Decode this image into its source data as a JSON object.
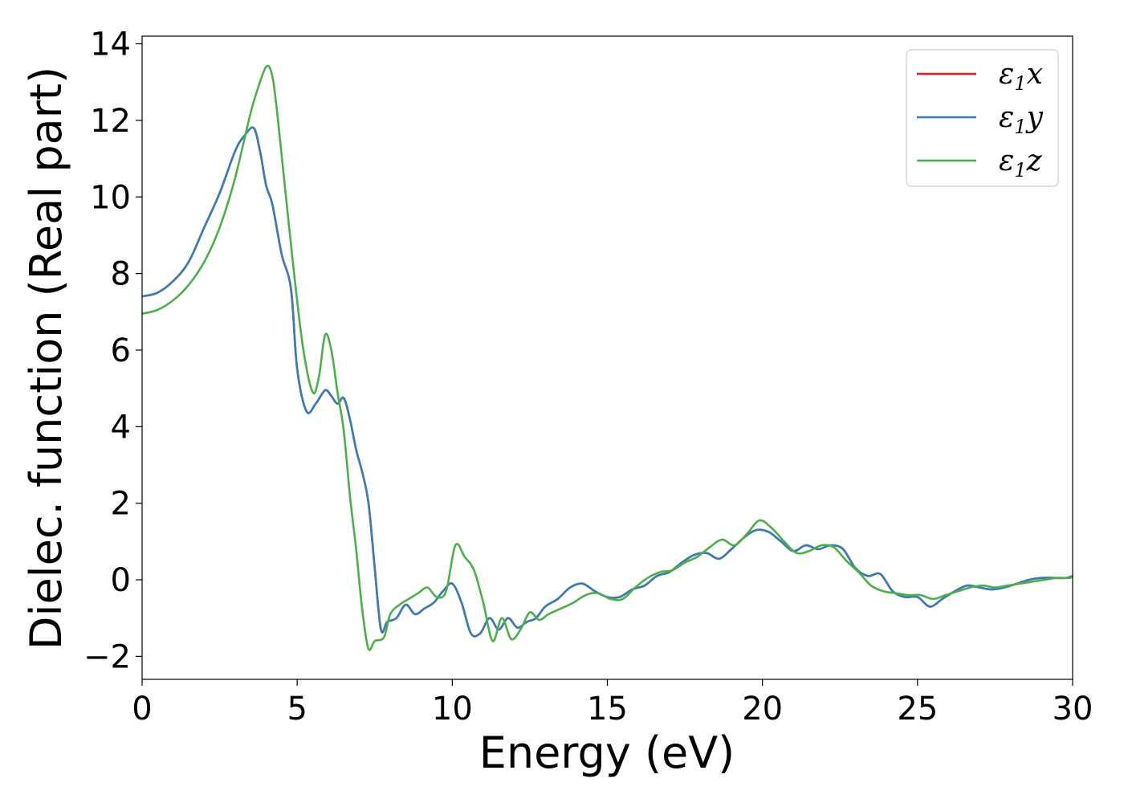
{
  "chart_data": {
    "type": "line",
    "xlabel": "Energy (eV)",
    "ylabel": "Dielec. function (Real part)",
    "xlim": [
      0,
      30
    ],
    "ylim": [
      -2.6,
      14.2
    ],
    "xticks": [
      0,
      5,
      10,
      15,
      20,
      25,
      30
    ],
    "xtick_labels": [
      "0",
      "5",
      "10",
      "15",
      "20",
      "25",
      "30"
    ],
    "yticks": [
      -2,
      0,
      2,
      4,
      6,
      8,
      10,
      12,
      14
    ],
    "ytick_labels": [
      "−2",
      "0",
      "2",
      "4",
      "6",
      "8",
      "10",
      "12",
      "14"
    ],
    "grid": false,
    "legend_position": "top-right",
    "series": [
      {
        "name": "ε1x",
        "symbol": "ε",
        "subscript": "1",
        "suffix": "x",
        "color": "#e41a1c",
        "x": [
          0,
          0.5,
          1,
          1.5,
          2,
          2.5,
          3,
          3.3,
          3.6,
          3.8,
          4,
          4.2,
          4.5,
          4.8,
          5,
          5.3,
          5.6,
          5.9,
          6.1,
          6.3,
          6.5,
          6.7,
          6.9,
          7.1,
          7.3,
          7.5,
          7.7,
          7.9,
          8.2,
          8.5,
          8.8,
          9.1,
          9.4,
          9.7,
          10,
          10.3,
          10.6,
          10.9,
          11.2,
          11.5,
          11.8,
          12.1,
          12.4,
          12.7,
          13,
          13.4,
          13.8,
          14.2,
          14.6,
          15,
          15.4,
          15.8,
          16.2,
          16.6,
          17,
          17.4,
          17.8,
          18.2,
          18.6,
          19,
          19.4,
          19.8,
          20.2,
          20.6,
          21,
          21.4,
          21.8,
          22.2,
          22.6,
          23,
          23.4,
          23.8,
          24.2,
          24.6,
          25,
          25.4,
          25.8,
          26.2,
          26.6,
          27,
          27.4,
          27.8,
          28.2,
          28.6,
          29,
          29.4,
          29.8,
          30
        ],
        "y": [
          7.4,
          7.5,
          7.8,
          8.3,
          9.2,
          10.1,
          11.2,
          11.6,
          11.8,
          11.2,
          10.3,
          9.8,
          8.5,
          7.6,
          5.5,
          4.4,
          4.6,
          4.95,
          4.8,
          4.6,
          4.75,
          4.2,
          3.4,
          2.8,
          2.0,
          0.3,
          -1.3,
          -1.1,
          -1.0,
          -0.65,
          -0.9,
          -0.75,
          -0.6,
          -0.3,
          -0.1,
          -0.6,
          -1.4,
          -1.4,
          -1.0,
          -1.3,
          -1.0,
          -1.25,
          -1.1,
          -1.0,
          -0.7,
          -0.5,
          -0.2,
          -0.1,
          -0.3,
          -0.45,
          -0.45,
          -0.25,
          -0.15,
          0.1,
          0.2,
          0.45,
          0.65,
          0.7,
          0.55,
          0.8,
          1.1,
          1.3,
          1.25,
          1.0,
          0.75,
          0.9,
          0.8,
          0.9,
          0.8,
          0.3,
          0.1,
          0.15,
          -0.3,
          -0.45,
          -0.45,
          -0.7,
          -0.5,
          -0.3,
          -0.15,
          -0.2,
          -0.25,
          -0.2,
          -0.1,
          0.0,
          0.05,
          0.05,
          0.05,
          0.1
        ]
      },
      {
        "name": "ε1y",
        "symbol": "ε",
        "subscript": "1",
        "suffix": "y",
        "color": "#377eb8",
        "x": [
          0,
          0.5,
          1,
          1.5,
          2,
          2.5,
          3,
          3.3,
          3.6,
          3.8,
          4,
          4.2,
          4.5,
          4.8,
          5,
          5.3,
          5.6,
          5.9,
          6.1,
          6.3,
          6.5,
          6.7,
          6.9,
          7.1,
          7.3,
          7.5,
          7.7,
          7.9,
          8.2,
          8.5,
          8.8,
          9.1,
          9.4,
          9.7,
          10,
          10.3,
          10.6,
          10.9,
          11.2,
          11.5,
          11.8,
          12.1,
          12.4,
          12.7,
          13,
          13.4,
          13.8,
          14.2,
          14.6,
          15,
          15.4,
          15.8,
          16.2,
          16.6,
          17,
          17.4,
          17.8,
          18.2,
          18.6,
          19,
          19.4,
          19.8,
          20.2,
          20.6,
          21,
          21.4,
          21.8,
          22.2,
          22.6,
          23,
          23.4,
          23.8,
          24.2,
          24.6,
          25,
          25.4,
          25.8,
          26.2,
          26.6,
          27,
          27.4,
          27.8,
          28.2,
          28.6,
          29,
          29.4,
          29.8,
          30
        ],
        "y": [
          7.4,
          7.5,
          7.8,
          8.3,
          9.2,
          10.1,
          11.2,
          11.6,
          11.8,
          11.2,
          10.3,
          9.8,
          8.5,
          7.6,
          5.5,
          4.4,
          4.6,
          4.95,
          4.8,
          4.6,
          4.75,
          4.2,
          3.4,
          2.8,
          2.0,
          0.3,
          -1.3,
          -1.1,
          -1.0,
          -0.65,
          -0.9,
          -0.75,
          -0.6,
          -0.3,
          -0.1,
          -0.6,
          -1.4,
          -1.4,
          -1.0,
          -1.3,
          -1.0,
          -1.25,
          -1.1,
          -1.0,
          -0.7,
          -0.5,
          -0.2,
          -0.1,
          -0.3,
          -0.45,
          -0.45,
          -0.25,
          -0.15,
          0.1,
          0.2,
          0.45,
          0.65,
          0.7,
          0.55,
          0.8,
          1.1,
          1.3,
          1.25,
          1.0,
          0.75,
          0.9,
          0.8,
          0.9,
          0.8,
          0.3,
          0.1,
          0.15,
          -0.3,
          -0.45,
          -0.45,
          -0.7,
          -0.5,
          -0.3,
          -0.15,
          -0.2,
          -0.25,
          -0.2,
          -0.1,
          0.0,
          0.05,
          0.05,
          0.05,
          0.1
        ]
      },
      {
        "name": "ε1z",
        "symbol": "ε",
        "subscript": "1",
        "suffix": "z",
        "color": "#4daf4a",
        "x": [
          0,
          0.5,
          1,
          1.5,
          2,
          2.5,
          3,
          3.5,
          3.8,
          4.0,
          4.15,
          4.3,
          4.6,
          4.9,
          5.2,
          5.5,
          5.7,
          5.9,
          6.1,
          6.3,
          6.5,
          6.7,
          6.9,
          7.1,
          7.3,
          7.5,
          7.8,
          8.0,
          8.3,
          8.6,
          8.9,
          9.2,
          9.5,
          9.8,
          10.1,
          10.4,
          10.7,
          11.0,
          11.3,
          11.6,
          11.9,
          12.2,
          12.5,
          12.8,
          13.1,
          13.5,
          13.9,
          14.3,
          14.7,
          15.1,
          15.5,
          15.9,
          16.3,
          16.7,
          17.1,
          17.5,
          17.9,
          18.3,
          18.7,
          19.1,
          19.5,
          19.9,
          20.3,
          20.7,
          21.1,
          21.5,
          21.9,
          22.3,
          22.7,
          23.1,
          23.5,
          23.9,
          24.3,
          24.7,
          25.1,
          25.5,
          25.9,
          26.3,
          26.7,
          27.1,
          27.5,
          27.9,
          28.3,
          28.7,
          29.1,
          29.5,
          29.9,
          30
        ],
        "y": [
          6.95,
          7.05,
          7.3,
          7.7,
          8.3,
          9.2,
          10.5,
          12.2,
          13.0,
          13.4,
          13.3,
          12.6,
          10.3,
          8.0,
          6.0,
          4.9,
          5.3,
          6.4,
          6.0,
          4.9,
          3.9,
          2.2,
          0.8,
          -0.8,
          -1.8,
          -1.6,
          -1.5,
          -0.9,
          -0.65,
          -0.5,
          -0.35,
          -0.2,
          -0.45,
          -0.3,
          0.9,
          0.6,
          0.25,
          -0.6,
          -1.6,
          -1.0,
          -1.55,
          -1.3,
          -0.85,
          -1.05,
          -0.9,
          -0.75,
          -0.6,
          -0.4,
          -0.35,
          -0.5,
          -0.5,
          -0.2,
          0.05,
          0.2,
          0.25,
          0.45,
          0.6,
          0.85,
          1.05,
          0.9,
          1.2,
          1.55,
          1.35,
          1.0,
          0.7,
          0.75,
          0.9,
          0.85,
          0.5,
          0.2,
          -0.15,
          -0.3,
          -0.35,
          -0.4,
          -0.4,
          -0.5,
          -0.4,
          -0.3,
          -0.2,
          -0.15,
          -0.2,
          -0.15,
          -0.1,
          -0.05,
          0.0,
          0.05,
          0.05,
          0.1
        ]
      }
    ]
  }
}
